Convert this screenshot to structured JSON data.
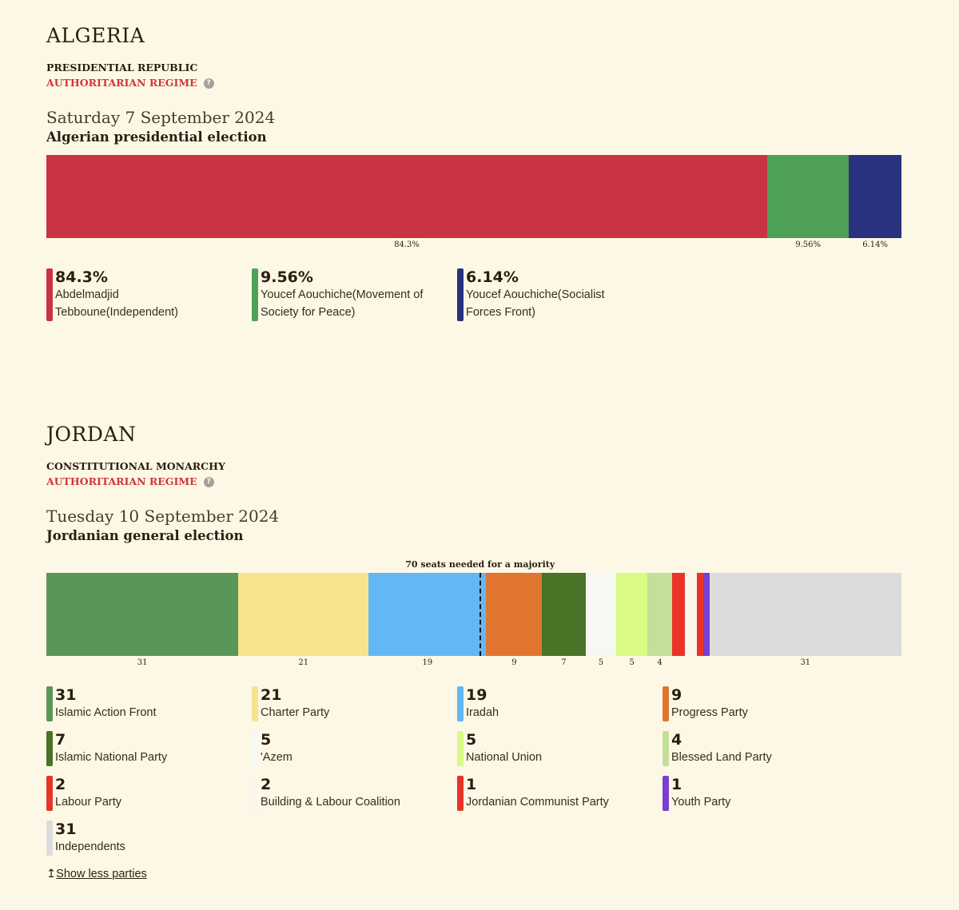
{
  "algeria": {
    "name": "ALGERIA",
    "government": "PRESIDENTIAL REPUBLIC",
    "regime": "AUTHORITARIAN REGIME",
    "help": "?",
    "date": "Saturday 7 September 2024",
    "election": "Algerian presidential election",
    "results": [
      {
        "value": 84.3,
        "label": "84.3%",
        "name": "Abdelmadjid Tebboune(Independent)",
        "color": "#c93343"
      },
      {
        "value": 9.56,
        "label": "9.56%",
        "name": "Youcef Aouchiche(Movement of Society for Peace)",
        "color": "#4fa157"
      },
      {
        "value": 6.14,
        "label": "6.14%",
        "name": "Youcef Aouchiche(Socialist Forces Front)",
        "color": "#29327f"
      }
    ]
  },
  "jordan": {
    "name": "JORDAN",
    "government": "CONSTITUTIONAL MONARCHY",
    "regime": "AUTHORITARIAN REGIME",
    "help": "?",
    "date": "Tuesday 10 September 2024",
    "election": "Jordanian general election",
    "majority_text": "70 seats needed for a majority",
    "majority_seats": 70,
    "total_seats": 138,
    "results": [
      {
        "value": 31,
        "label": "31",
        "name": "Islamic Action Front",
        "color": "#5a9657",
        "tick": true
      },
      {
        "value": 21,
        "label": "21",
        "name": "Charter Party",
        "color": "#f5e48d",
        "tick": true
      },
      {
        "value": 19,
        "label": "19",
        "name": "Iradah",
        "color": "#63b7f4",
        "tick": true
      },
      {
        "value": 9,
        "label": "9",
        "name": "Progress Party",
        "color": "#e07530",
        "tick": true
      },
      {
        "value": 7,
        "label": "7",
        "name": "Islamic National Party",
        "color": "#4a7328",
        "tick": true
      },
      {
        "value": 5,
        "label": "5",
        "name": "'Azem",
        "color": "#f7f7f3",
        "tick": true
      },
      {
        "value": 5,
        "label": "5",
        "name": "National Union",
        "color": "#d9fa85",
        "tick": true
      },
      {
        "value": 4,
        "label": "4",
        "name": "Blessed Land Party",
        "color": "#c4df9a",
        "tick": true
      },
      {
        "value": 2,
        "label": "2",
        "name": "Labour Party",
        "color": "#e83428",
        "tick": false
      },
      {
        "value": 2,
        "label": "2",
        "name": "Building & Labour Coalition",
        "color": "#faf6ec",
        "tick": false
      },
      {
        "value": 1,
        "label": "1",
        "name": "Jordanian Communist Party",
        "color": "#e83428",
        "tick": false
      },
      {
        "value": 1,
        "label": "1",
        "name": "Youth Party",
        "color": "#7b3fd0",
        "tick": false
      },
      {
        "value": 31,
        "label": "31",
        "name": "Independents",
        "color": "#dcdcdc",
        "tick": true
      }
    ]
  },
  "show_less": {
    "arrow": "↥",
    "label": "Show less parties"
  }
}
